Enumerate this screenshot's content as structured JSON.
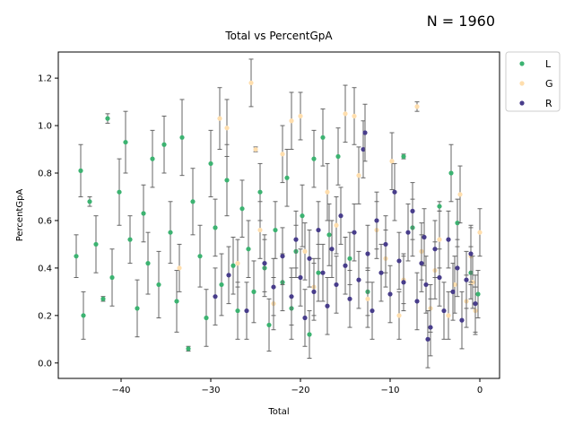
{
  "annotation": "N = 1960",
  "chart_data": {
    "type": "scatter",
    "title": "Total vs PercentGpA",
    "xlabel": "Total",
    "ylabel": "PercentGpA",
    "xlim": [
      -47,
      2.2
    ],
    "ylim": [
      -0.065,
      1.31
    ],
    "xticks": [
      -40,
      -30,
      -20,
      -10,
      0
    ],
    "yticks": [
      0.0,
      0.2,
      0.4,
      0.6,
      0.8,
      1.0,
      1.2
    ],
    "xtick_labels": [
      "−40",
      "−30",
      "−20",
      "−10",
      "0"
    ],
    "ytick_labels": [
      "0.0",
      "0.2",
      "0.4",
      "0.6",
      "0.8",
      "1.0",
      "1.2"
    ],
    "grid": false,
    "legend_position": "outside-top-right",
    "error_bars": true,
    "error_bar_color": "#666666",
    "series": [
      {
        "name": "L",
        "color": "#3cb371",
        "points": [
          [
            -45.0,
            0.45,
            0.09
          ],
          [
            -44.5,
            0.81,
            0.11
          ],
          [
            -44.2,
            0.2,
            0.1
          ],
          [
            -43.5,
            0.68,
            0.02
          ],
          [
            -42.8,
            0.5,
            0.12
          ],
          [
            -42.0,
            0.27,
            0.01
          ],
          [
            -41.5,
            1.03,
            0.02
          ],
          [
            -41.0,
            0.36,
            0.12
          ],
          [
            -40.2,
            0.72,
            0.14
          ],
          [
            -39.5,
            0.93,
            0.13
          ],
          [
            -39.0,
            0.52,
            0.1
          ],
          [
            -38.2,
            0.23,
            0.12
          ],
          [
            -37.5,
            0.63,
            0.12
          ],
          [
            -37.0,
            0.42,
            0.13
          ],
          [
            -36.5,
            0.86,
            0.12
          ],
          [
            -35.8,
            0.33,
            0.14
          ],
          [
            -35.2,
            0.92,
            0.12
          ],
          [
            -34.5,
            0.55,
            0.13
          ],
          [
            -33.8,
            0.26,
            0.13
          ],
          [
            -33.2,
            0.95,
            0.16
          ],
          [
            -32.5,
            0.06,
            0.01
          ],
          [
            -32.0,
            0.68,
            0.14
          ],
          [
            -31.2,
            0.45,
            0.13
          ],
          [
            -30.5,
            0.19,
            0.12
          ],
          [
            -30.0,
            0.84,
            0.14
          ],
          [
            -29.5,
            0.57,
            0.12
          ],
          [
            -28.8,
            0.33,
            0.13
          ],
          [
            -28.2,
            0.77,
            0.15
          ],
          [
            -27.5,
            0.41,
            0.12
          ],
          [
            -27.0,
            0.22,
            0.12
          ],
          [
            -26.5,
            0.65,
            0.12
          ],
          [
            -25.8,
            0.48,
            0.12
          ],
          [
            -25.2,
            0.3,
            0.13
          ],
          [
            -24.5,
            0.72,
            0.12
          ],
          [
            -24.0,
            0.4,
            0.12
          ],
          [
            -23.5,
            0.16,
            0.11
          ],
          [
            -22.8,
            0.56,
            0.12
          ],
          [
            -22.0,
            0.34,
            0.12
          ],
          [
            -21.5,
            0.78,
            0.12
          ],
          [
            -21.0,
            0.23,
            0.13
          ],
          [
            -20.5,
            0.47,
            0.11
          ],
          [
            -19.8,
            0.62,
            0.13
          ],
          [
            -19.0,
            0.12,
            0.1
          ],
          [
            -18.5,
            0.86,
            0.12
          ],
          [
            -18.0,
            0.38,
            0.12
          ],
          [
            -17.5,
            0.95,
            0.12
          ],
          [
            -16.8,
            0.54,
            0.13
          ],
          [
            -15.8,
            0.87,
            0.12
          ],
          [
            -14.5,
            0.44,
            0.11
          ],
          [
            -12.5,
            0.3,
            0.1
          ],
          [
            -8.5,
            0.87,
            0.01
          ],
          [
            -7.5,
            0.57,
            0.12
          ],
          [
            -4.5,
            0.66,
            0.02
          ],
          [
            -3.2,
            0.8,
            0.12
          ],
          [
            -2.5,
            0.59,
            0.1
          ],
          [
            -1.0,
            0.38,
            0.11
          ],
          [
            -0.2,
            0.29,
            0.1
          ]
        ]
      },
      {
        "name": "G",
        "color": "#ffdead",
        "points": [
          [
            -33.5,
            0.4,
            0.1
          ],
          [
            -29.0,
            1.03,
            0.13
          ],
          [
            -28.2,
            0.99,
            0.12
          ],
          [
            -27.0,
            0.42,
            0.1
          ],
          [
            -25.5,
            1.18,
            0.1
          ],
          [
            -25.0,
            0.9,
            0.01
          ],
          [
            -24.5,
            0.56,
            0.12
          ],
          [
            -23.0,
            0.25,
            0.11
          ],
          [
            -22.0,
            0.88,
            0.12
          ],
          [
            -21.0,
            1.02,
            0.12
          ],
          [
            -20.0,
            1.04,
            0.1
          ],
          [
            -19.5,
            0.47,
            0.12
          ],
          [
            -18.5,
            0.32,
            0.12
          ],
          [
            -17.0,
            0.72,
            0.12
          ],
          [
            -16.0,
            0.58,
            0.12
          ],
          [
            -15.0,
            1.05,
            0.12
          ],
          [
            -14.0,
            1.04,
            0.12
          ],
          [
            -13.5,
            0.79,
            0.12
          ],
          [
            -12.5,
            0.27,
            0.12
          ],
          [
            -11.5,
            0.56,
            0.12
          ],
          [
            -10.5,
            0.44,
            0.12
          ],
          [
            -9.8,
            0.85,
            0.12
          ],
          [
            -9.0,
            0.2,
            0.1
          ],
          [
            -8.5,
            0.35,
            0.1
          ],
          [
            -7.0,
            1.08,
            0.02
          ],
          [
            -6.5,
            0.47,
            0.12
          ],
          [
            -5.5,
            0.23,
            0.1
          ],
          [
            -5.0,
            0.39,
            0.12
          ],
          [
            -4.5,
            0.52,
            0.12
          ],
          [
            -3.5,
            0.2,
            0.1
          ],
          [
            -2.8,
            0.33,
            0.12
          ],
          [
            -2.2,
            0.71,
            0.12
          ],
          [
            -1.5,
            0.26,
            0.11
          ],
          [
            -1.0,
            0.45,
            0.12
          ],
          [
            -0.5,
            0.22,
            0.1
          ],
          [
            0.0,
            0.55,
            0.1
          ],
          [
            -0.8,
            0.34,
            0.11
          ]
        ]
      },
      {
        "name": "R",
        "color": "#483d8b",
        "points": [
          [
            -29.5,
            0.28,
            0.12
          ],
          [
            -28.0,
            0.37,
            0.12
          ],
          [
            -26.0,
            0.22,
            0.12
          ],
          [
            -24.0,
            0.42,
            0.12
          ],
          [
            -23.0,
            0.32,
            0.12
          ],
          [
            -22.0,
            0.45,
            0.12
          ],
          [
            -21.0,
            0.28,
            0.12
          ],
          [
            -20.5,
            0.52,
            0.12
          ],
          [
            -20.0,
            0.36,
            0.12
          ],
          [
            -19.5,
            0.19,
            0.12
          ],
          [
            -19.0,
            0.44,
            0.12
          ],
          [
            -18.5,
            0.3,
            0.12
          ],
          [
            -18.0,
            0.56,
            0.12
          ],
          [
            -17.5,
            0.38,
            0.12
          ],
          [
            -17.0,
            0.24,
            0.12
          ],
          [
            -16.5,
            0.48,
            0.12
          ],
          [
            -16.0,
            0.33,
            0.12
          ],
          [
            -15.5,
            0.62,
            0.12
          ],
          [
            -15.0,
            0.41,
            0.12
          ],
          [
            -14.5,
            0.27,
            0.12
          ],
          [
            -14.0,
            0.55,
            0.12
          ],
          [
            -13.5,
            0.35,
            0.12
          ],
          [
            -13.0,
            0.9,
            0.12
          ],
          [
            -12.8,
            0.97,
            0.12
          ],
          [
            -12.5,
            0.46,
            0.12
          ],
          [
            -12.0,
            0.22,
            0.12
          ],
          [
            -11.5,
            0.6,
            0.12
          ],
          [
            -11.0,
            0.38,
            0.12
          ],
          [
            -10.5,
            0.5,
            0.12
          ],
          [
            -10.0,
            0.29,
            0.12
          ],
          [
            -9.5,
            0.72,
            0.12
          ],
          [
            -9.0,
            0.43,
            0.12
          ],
          [
            -8.5,
            0.34,
            0.12
          ],
          [
            -8.0,
            0.55,
            0.12
          ],
          [
            -7.5,
            0.64,
            0.12
          ],
          [
            -7.0,
            0.26,
            0.12
          ],
          [
            -6.5,
            0.42,
            0.12
          ],
          [
            -6.0,
            0.33,
            0.12
          ],
          [
            -5.5,
            0.15,
            0.12
          ],
          [
            -5.0,
            0.48,
            0.12
          ],
          [
            -4.5,
            0.36,
            0.12
          ],
          [
            -4.0,
            0.22,
            0.12
          ],
          [
            -3.5,
            0.52,
            0.12
          ],
          [
            -3.0,
            0.3,
            0.12
          ],
          [
            -2.5,
            0.4,
            0.12
          ],
          [
            -2.0,
            0.18,
            0.12
          ],
          [
            -1.5,
            0.35,
            0.12
          ],
          [
            -1.0,
            0.46,
            0.12
          ],
          [
            -0.5,
            0.25,
            0.12
          ],
          [
            -5.8,
            0.1,
            0.12
          ],
          [
            -6.2,
            0.53,
            0.12
          ]
        ]
      }
    ]
  }
}
